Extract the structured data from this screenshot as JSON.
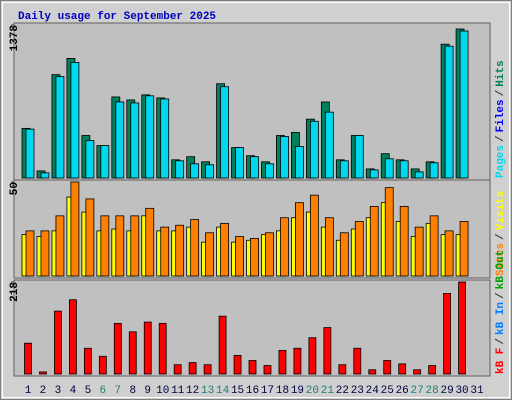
{
  "chart_data": [
    {
      "type": "bar",
      "title": "Daily usage for September 2025",
      "legend_separator": "/",
      "series": [
        {
          "name": "Hits",
          "color": "#00805c",
          "values": [
            447,
            64,
            931,
            1077,
            383,
            292,
            730,
            703,
            749,
            721,
            164,
            192,
            146,
            849,
            274,
            201,
            146,
            383,
            411,
            530,
            685,
            164,
            383,
            82,
            219,
            164,
            82,
            146,
            1205,
            1342,
            null
          ]
        },
        {
          "name": "Files",
          "color": "#0000ff",
          "values": [
            null,
            null,
            null,
            null,
            null,
            null,
            null,
            null,
            null,
            null,
            null,
            null,
            null,
            null,
            null,
            null,
            null,
            null,
            null,
            null,
            null,
            null,
            null,
            null,
            null,
            null,
            null,
            null,
            null,
            null,
            null
          ]
        },
        {
          "name": "Pages",
          "color": "#00d8f0",
          "values": [
            440,
            46,
            913,
            1041,
            338,
            292,
            685,
            676,
            740,
            712,
            155,
            128,
            119,
            822,
            274,
            192,
            128,
            374,
            283,
            511,
            593,
            155,
            383,
            73,
            173,
            155,
            55,
            137,
            1187,
            1324,
            null
          ]
        }
      ],
      "ylim": [
        0,
        1378
      ],
      "yticks": [
        1378
      ]
    },
    {
      "type": "bar",
      "series": [
        {
          "name": "Visits",
          "color": "#ffff00",
          "values": [
            22,
            21,
            24,
            42,
            34,
            24,
            25,
            24,
            32,
            24,
            24,
            26,
            18,
            26,
            18,
            19,
            22,
            24,
            31,
            34,
            26,
            19,
            25,
            31,
            39,
            29,
            21,
            28,
            22,
            22,
            null
          ]
        },
        {
          "name": "Sites",
          "color": "#ff8000",
          "values": [
            24,
            24,
            32,
            50,
            41,
            32,
            32,
            32,
            36,
            26,
            27,
            30,
            23,
            28,
            21,
            20,
            23,
            31,
            39,
            43,
            31,
            23,
            29,
            37,
            47,
            37,
            26,
            32,
            24,
            29,
            null
          ]
        }
      ],
      "ylim": [
        0,
        50
      ],
      "yticks": [
        50
      ]
    },
    {
      "type": "bar",
      "categories": [
        "1",
        "2",
        "3",
        "4",
        "5",
        "6",
        "7",
        "8",
        "9",
        "10",
        "11",
        "12",
        "13",
        "14",
        "15",
        "16",
        "17",
        "18",
        "19",
        "20",
        "21",
        "22",
        "23",
        "24",
        "25",
        "26",
        "27",
        "28",
        "29",
        "30",
        "31"
      ],
      "category_colors": [
        "#000040",
        "#000040",
        "#000040",
        "#000040",
        "#000040",
        "#208070",
        "#208070",
        "#000040",
        "#000040",
        "#000040",
        "#000040",
        "#000040",
        "#208070",
        "#208070",
        "#000040",
        "#000040",
        "#000040",
        "#000040",
        "#000040",
        "#208070",
        "#208070",
        "#000040",
        "#000040",
        "#000040",
        "#000040",
        "#000040",
        "#208070",
        "#208070",
        "#000040",
        "#000040",
        "#000040"
      ],
      "series": [
        {
          "name": "kB Out",
          "color": "#00a000",
          "values": [
            null,
            null,
            null,
            null,
            null,
            null,
            null,
            null,
            null,
            null,
            null,
            null,
            null,
            null,
            null,
            null,
            null,
            null,
            null,
            null,
            null,
            null,
            null,
            null,
            null,
            null,
            null,
            null,
            null,
            null,
            null
          ]
        },
        {
          "name": "kB In",
          "color": "#0080ff",
          "values": [
            null,
            null,
            null,
            null,
            null,
            null,
            null,
            null,
            null,
            null,
            null,
            null,
            null,
            null,
            null,
            null,
            null,
            null,
            null,
            null,
            null,
            null,
            null,
            null,
            null,
            null,
            null,
            null,
            null,
            null,
            null
          ]
        },
        {
          "name": "kB F",
          "color": "#ff0000",
          "values": [
            73,
            5,
            149,
            176,
            61,
            42,
            120,
            100,
            123,
            120,
            22,
            27,
            22,
            137,
            44,
            32,
            20,
            56,
            61,
            86,
            110,
            22,
            61,
            10,
            32,
            24,
            10,
            20,
            191,
            218,
            null
          ]
        }
      ],
      "ylim": [
        0,
        218
      ],
      "yticks": [
        218
      ]
    }
  ]
}
